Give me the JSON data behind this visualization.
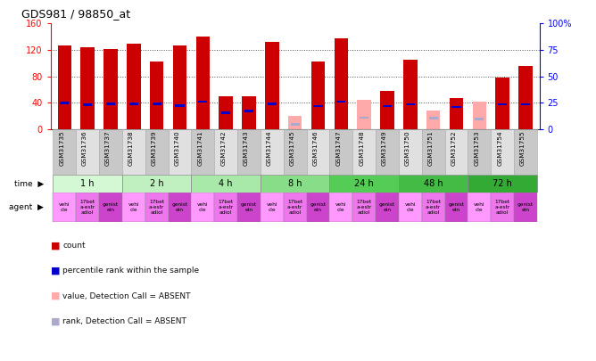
{
  "title": "GDS981 / 98850_at",
  "samples": [
    "GSM31735",
    "GSM31736",
    "GSM31737",
    "GSM31738",
    "GSM31739",
    "GSM31740",
    "GSM31741",
    "GSM31742",
    "GSM31743",
    "GSM31744",
    "GSM31745",
    "GSM31746",
    "GSM31747",
    "GSM31748",
    "GSM31749",
    "GSM31750",
    "GSM31751",
    "GSM31752",
    "GSM31753",
    "GSM31754",
    "GSM31755"
  ],
  "counts": [
    127,
    124,
    121,
    130,
    102,
    127,
    140,
    50,
    50,
    132,
    null,
    103,
    138,
    null,
    58,
    105,
    null,
    47,
    null,
    78,
    96
  ],
  "ranks": [
    40,
    37,
    39,
    39,
    39,
    36,
    42,
    25,
    28,
    39,
    null,
    35,
    42,
    null,
    35,
    38,
    null,
    34,
    null,
    38,
    38
  ],
  "absent_counts": [
    null,
    null,
    null,
    null,
    null,
    null,
    null,
    null,
    null,
    null,
    20,
    null,
    null,
    45,
    null,
    null,
    28,
    null,
    42,
    null,
    null
  ],
  "absent_ranks": [
    null,
    null,
    null,
    null,
    null,
    null,
    null,
    null,
    null,
    null,
    8,
    null,
    null,
    18,
    null,
    null,
    17,
    null,
    16,
    null,
    null
  ],
  "count_color": "#cc0000",
  "rank_color": "#0000cc",
  "absent_count_color": "#ffaaaa",
  "absent_rank_color": "#aaaacc",
  "ylim_left": [
    0,
    160
  ],
  "ylim_right": [
    0,
    100
  ],
  "yticks_left": [
    0,
    40,
    80,
    120,
    160
  ],
  "yticks_right": [
    0,
    25,
    50,
    75,
    100
  ],
  "grid_lines": [
    40,
    80,
    120
  ],
  "time_labels": [
    "1 h",
    "2 h",
    "4 h",
    "8 h",
    "24 h",
    "48 h",
    "72 h"
  ],
  "time_colors": [
    "#d4f7d4",
    "#c0f0c0",
    "#a8e8a8",
    "#88de88",
    "#55cc55",
    "#44bb44",
    "#33aa33"
  ],
  "agent_labels": [
    "vehi\ncle",
    "17bet\na-estr\nadiol",
    "genist\nein"
  ],
  "agent_colors": [
    "#ff99ff",
    "#ee77ee",
    "#cc44cc"
  ],
  "legend_items": [
    {
      "color": "#cc0000",
      "label": "count"
    },
    {
      "color": "#0000cc",
      "label": "percentile rank within the sample"
    },
    {
      "color": "#ffaaaa",
      "label": "value, Detection Call = ABSENT"
    },
    {
      "color": "#aaaacc",
      "label": "rank, Detection Call = ABSENT"
    }
  ]
}
